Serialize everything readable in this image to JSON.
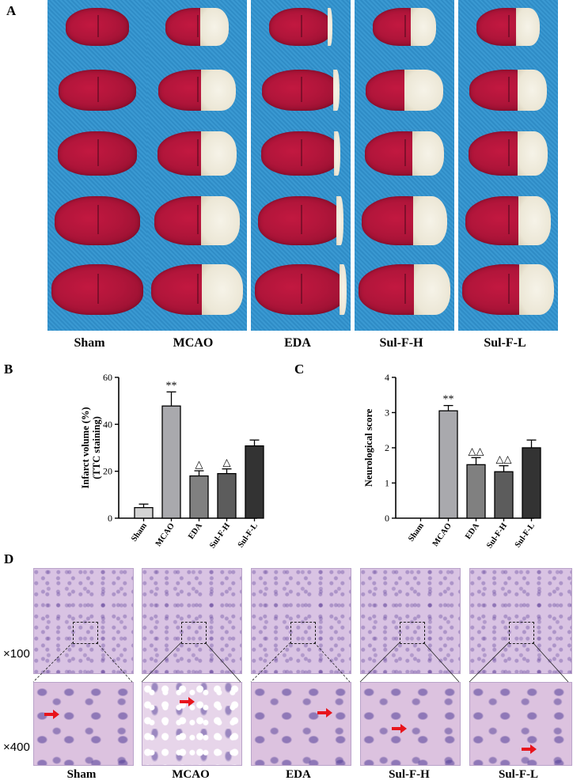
{
  "panels": {
    "a": "A",
    "b": "B",
    "c": "C",
    "d": "D"
  },
  "groups": [
    "Sham",
    "MCAO",
    "EDA",
    "Sul-F-H",
    "Sul-F-L"
  ],
  "magnifications": {
    "low": "×100",
    "high": "×400"
  },
  "chart_data": [
    {
      "type": "bar",
      "panel": "B",
      "categories": [
        "Sham",
        "MCAO",
        "EDA",
        "Sul-F-H",
        "Sul-F-L"
      ],
      "values": [
        4.5,
        47.8,
        18.0,
        19.0,
        30.8
      ],
      "errors": [
        1.5,
        6.0,
        2.2,
        2.0,
        2.5
      ],
      "annotations": [
        "",
        "**",
        "△",
        "△",
        ""
      ],
      "ylabel": "Infarct volume (%)",
      "ylabel2": "(TTC staining)",
      "ylim": [
        0,
        60
      ],
      "yticks": [
        0,
        20,
        40,
        60
      ],
      "colors": [
        "#d3d3d3",
        "#a9a9ad",
        "#808080",
        "#5c5c5c",
        "#333333"
      ]
    },
    {
      "type": "bar",
      "panel": "C",
      "categories": [
        "Sham",
        "MCAO",
        "EDA",
        "Sul-F-H",
        "Sul-F-L"
      ],
      "values": [
        0,
        3.05,
        1.52,
        1.32,
        2.0
      ],
      "errors": [
        0,
        0.15,
        0.2,
        0.17,
        0.22
      ],
      "annotations": [
        "",
        "**",
        "△△",
        "△△",
        ""
      ],
      "ylabel": "Neurological score",
      "ylim": [
        0,
        4
      ],
      "yticks": [
        0,
        1,
        2,
        3,
        4
      ],
      "colors": [
        "#d3d3d3",
        "#a9a9ad",
        "#808080",
        "#5c5c5c",
        "#333333"
      ]
    }
  ]
}
